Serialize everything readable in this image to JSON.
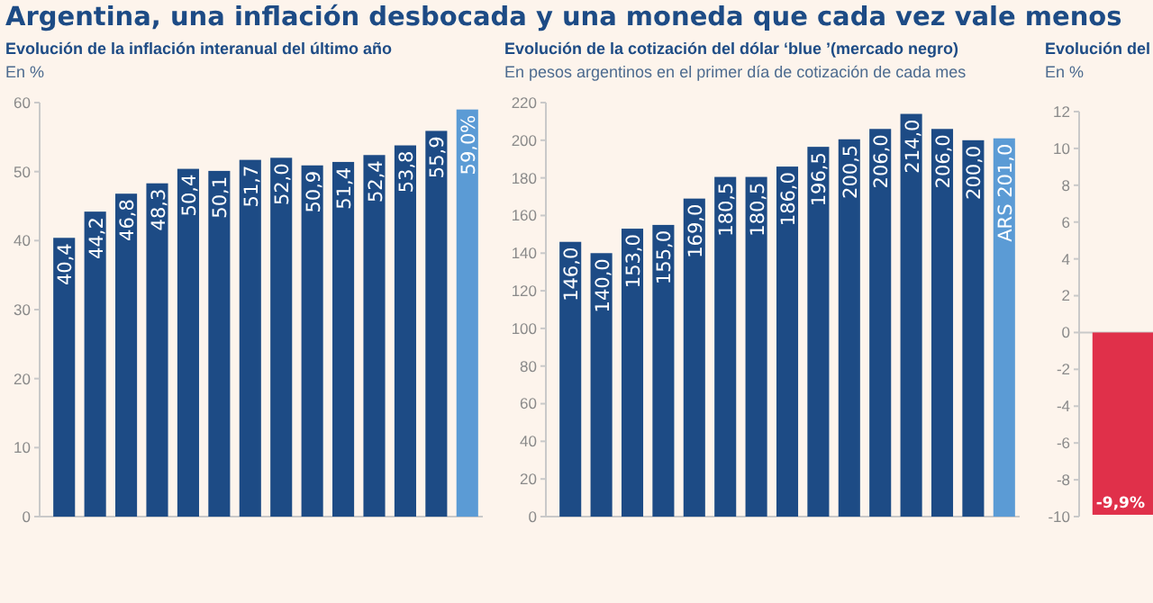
{
  "chart_data": [
    {
      "type": "bar",
      "title": "Argentina, una inflación desbocada y una moneda que cada vez vale menos",
      "subtitle": "Evolución de la inflación interanual del último año",
      "ylabel": "En %",
      "categories": [
        null,
        null,
        null,
        null,
        null,
        null,
        null,
        null,
        null,
        null,
        null,
        null,
        null,
        null
      ],
      "values": [
        40.4,
        44.2,
        46.8,
        48.3,
        50.4,
        50.1,
        51.7,
        52.0,
        50.9,
        51.4,
        52.4,
        53.8,
        55.9,
        59.0
      ],
      "colors": [
        "#1d4b85",
        "#1d4b85",
        "#1d4b85",
        "#1d4b85",
        "#1d4b85",
        "#1d4b85",
        "#1d4b85",
        "#1d4b85",
        "#1d4b85",
        "#1d4b85",
        "#1d4b85",
        "#1d4b85",
        "#1d4b85",
        "#5b9bd5"
      ],
      "value_labels": [
        "40,4",
        "44,2",
        "46,8",
        "48,3",
        "50,4",
        "50,1",
        "51,7",
        "52,0",
        "50,9",
        "51,4",
        "52,4",
        "53,8",
        "55,9",
        "59,0%"
      ],
      "ylim": [
        0,
        60
      ],
      "yticks": [
        0,
        10,
        20,
        30,
        40,
        50,
        60
      ],
      "grid": false
    },
    {
      "type": "bar",
      "title": "Evolución de la cotización del dólar ‘blue ’(mercado negro)",
      "ylabel": "En pesos argentinos en el primer día de cotización de cada mes",
      "categories": [
        null,
        null,
        null,
        null,
        null,
        null,
        null,
        null,
        null,
        null,
        null,
        null,
        null,
        null,
        null
      ],
      "values": [
        146.0,
        140.0,
        153.0,
        155.0,
        169.0,
        180.5,
        180.5,
        186.0,
        196.5,
        200.5,
        206.0,
        214.0,
        206.0,
        200.0,
        201.0
      ],
      "colors": [
        "#1d4b85",
        "#1d4b85",
        "#1d4b85",
        "#1d4b85",
        "#1d4b85",
        "#1d4b85",
        "#1d4b85",
        "#1d4b85",
        "#1d4b85",
        "#1d4b85",
        "#1d4b85",
        "#1d4b85",
        "#1d4b85",
        "#1d4b85",
        "#5b9bd5"
      ],
      "value_labels": [
        "146,0",
        "140,0",
        "153,0",
        "155,0",
        "169,0",
        "180,5",
        "180,5",
        "186,0",
        "196,5",
        "200,5",
        "206,0",
        "214,0",
        "206,0",
        "200,0",
        "ARS 201,0"
      ],
      "ylim": [
        0,
        220
      ],
      "yticks": [
        0,
        20,
        40,
        60,
        80,
        100,
        120,
        140,
        160,
        180,
        200,
        220
      ],
      "grid": false
    },
    {
      "type": "bar",
      "title": "Evolución del",
      "ylabel": "En %",
      "categories": [
        null
      ],
      "values": [
        -9.9
      ],
      "colors": [
        "#e0304a"
      ],
      "value_labels": [
        "-9,9%"
      ],
      "ylim": [
        -10,
        12
      ],
      "yticks": [
        -10,
        -8,
        -6,
        -4,
        -2,
        0,
        2,
        4,
        6,
        8,
        10,
        12
      ]
    }
  ]
}
